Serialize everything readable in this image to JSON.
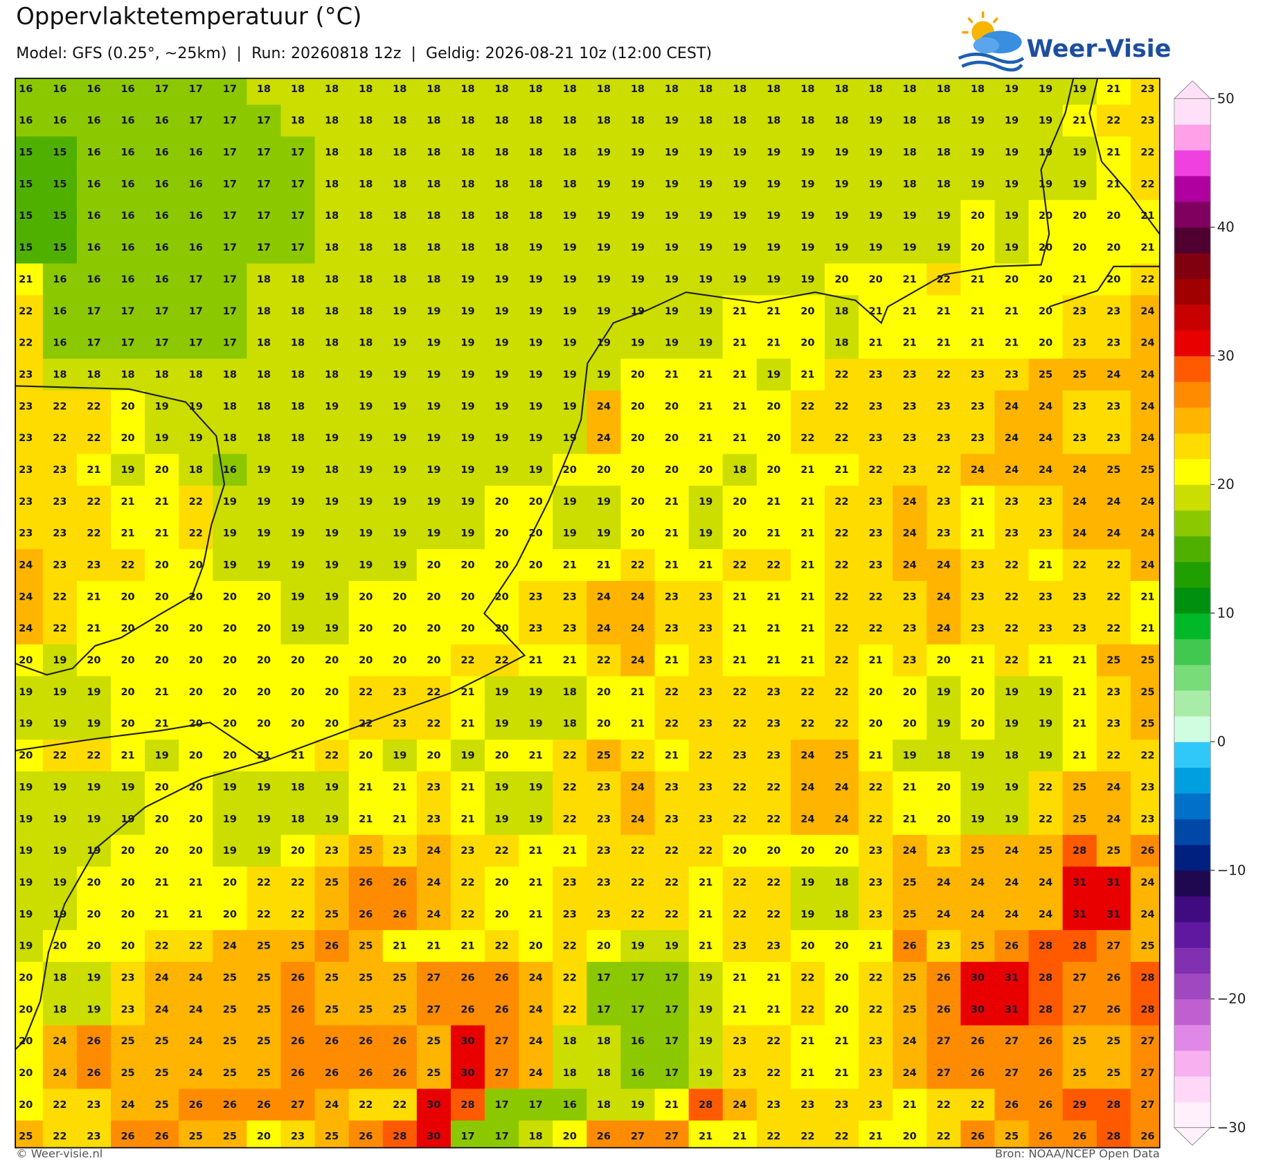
{
  "header": {
    "title": "Oppervlaktetemperatuur (°C)",
    "subtitle": "Model: GFS (0.25°, ~25km)  |  Run: 20260818 12z  |  Geldig: 2026-08-21 10z (12:00 CEST)",
    "logo": "Weer-Visie"
  },
  "map": {
    "values": [
      [
        16,
        16,
        16,
        16,
        17,
        17,
        17,
        18,
        18,
        18,
        18,
        18,
        18,
        18,
        18,
        18,
        18,
        18,
        18,
        18,
        18,
        18,
        18,
        18,
        18,
        18,
        18,
        18,
        18,
        19,
        19,
        19,
        21,
        23
      ],
      [
        16,
        16,
        16,
        16,
        16,
        17,
        17,
        17,
        18,
        18,
        18,
        18,
        18,
        18,
        18,
        18,
        18,
        18,
        18,
        19,
        18,
        18,
        18,
        18,
        18,
        19,
        18,
        18,
        19,
        19,
        19,
        21,
        22,
        23
      ],
      [
        15,
        15,
        16,
        16,
        16,
        16,
        17,
        17,
        17,
        18,
        18,
        18,
        18,
        18,
        18,
        18,
        18,
        19,
        19,
        19,
        19,
        19,
        19,
        19,
        19,
        19,
        18,
        18,
        19,
        19,
        19,
        19,
        21,
        22
      ],
      [
        15,
        15,
        16,
        16,
        16,
        16,
        17,
        17,
        17,
        18,
        18,
        18,
        18,
        18,
        18,
        18,
        18,
        19,
        19,
        19,
        19,
        19,
        19,
        19,
        19,
        19,
        18,
        18,
        19,
        19,
        19,
        19,
        21,
        22
      ],
      [
        15,
        15,
        16,
        16,
        16,
        16,
        17,
        17,
        17,
        18,
        18,
        18,
        18,
        18,
        18,
        18,
        19,
        19,
        19,
        19,
        19,
        19,
        19,
        19,
        19,
        19,
        19,
        19,
        20,
        19,
        20,
        20,
        20,
        21
      ],
      [
        15,
        15,
        16,
        16,
        16,
        16,
        17,
        17,
        17,
        18,
        18,
        18,
        18,
        18,
        18,
        19,
        19,
        19,
        19,
        19,
        19,
        19,
        19,
        19,
        19,
        19,
        19,
        19,
        20,
        19,
        20,
        20,
        20,
        21
      ],
      [
        21,
        16,
        16,
        16,
        16,
        17,
        17,
        18,
        18,
        18,
        18,
        18,
        18,
        19,
        19,
        19,
        19,
        19,
        19,
        19,
        19,
        19,
        19,
        19,
        20,
        20,
        21,
        22,
        21,
        20,
        20,
        21,
        20,
        22
      ],
      [
        22,
        16,
        17,
        17,
        17,
        17,
        17,
        18,
        18,
        18,
        18,
        19,
        19,
        19,
        19,
        19,
        19,
        19,
        19,
        19,
        19,
        21,
        21,
        20,
        18,
        21,
        21,
        21,
        21,
        21,
        20,
        23,
        23,
        24
      ],
      [
        22,
        16,
        17,
        17,
        17,
        17,
        17,
        18,
        18,
        18,
        18,
        19,
        19,
        19,
        19,
        19,
        19,
        19,
        19,
        19,
        19,
        21,
        21,
        20,
        18,
        21,
        21,
        21,
        21,
        21,
        20,
        23,
        23,
        24
      ],
      [
        23,
        18,
        18,
        18,
        18,
        18,
        18,
        18,
        18,
        18,
        19,
        19,
        19,
        19,
        19,
        19,
        19,
        19,
        20,
        21,
        21,
        21,
        19,
        21,
        22,
        23,
        23,
        22,
        23,
        23,
        25,
        25,
        24,
        24
      ],
      [
        23,
        22,
        22,
        20,
        19,
        19,
        18,
        18,
        18,
        19,
        19,
        19,
        19,
        19,
        19,
        19,
        19,
        24,
        20,
        20,
        21,
        21,
        20,
        22,
        22,
        23,
        23,
        23,
        23,
        24,
        24,
        23,
        23,
        24
      ],
      [
        23,
        22,
        22,
        20,
        19,
        19,
        18,
        18,
        18,
        19,
        19,
        19,
        19,
        19,
        19,
        19,
        19,
        24,
        20,
        20,
        21,
        21,
        20,
        22,
        22,
        23,
        23,
        23,
        23,
        24,
        24,
        23,
        23,
        24
      ],
      [
        23,
        23,
        21,
        19,
        20,
        18,
        16,
        19,
        19,
        18,
        19,
        19,
        19,
        19,
        19,
        19,
        20,
        20,
        20,
        20,
        20,
        18,
        20,
        21,
        21,
        22,
        23,
        22,
        24,
        24,
        24,
        24,
        25,
        25
      ],
      [
        23,
        23,
        22,
        21,
        21,
        22,
        19,
        19,
        19,
        19,
        19,
        19,
        19,
        19,
        20,
        20,
        19,
        19,
        20,
        21,
        19,
        20,
        21,
        21,
        22,
        23,
        24,
        23,
        21,
        23,
        23,
        24,
        24,
        24
      ],
      [
        23,
        23,
        22,
        21,
        21,
        22,
        19,
        19,
        19,
        19,
        19,
        19,
        19,
        19,
        20,
        20,
        19,
        19,
        20,
        21,
        19,
        20,
        21,
        21,
        22,
        23,
        24,
        23,
        21,
        23,
        23,
        24,
        24,
        24
      ],
      [
        24,
        23,
        23,
        22,
        20,
        20,
        19,
        19,
        19,
        19,
        19,
        19,
        20,
        20,
        20,
        20,
        21,
        21,
        22,
        21,
        21,
        22,
        22,
        21,
        22,
        23,
        24,
        24,
        23,
        22,
        21,
        22,
        22,
        24
      ],
      [
        24,
        22,
        21,
        20,
        20,
        20,
        20,
        20,
        19,
        19,
        20,
        20,
        20,
        20,
        20,
        23,
        23,
        24,
        24,
        23,
        23,
        21,
        21,
        21,
        22,
        22,
        23,
        24,
        23,
        22,
        23,
        23,
        22,
        21
      ],
      [
        24,
        22,
        21,
        20,
        20,
        20,
        20,
        20,
        19,
        19,
        20,
        20,
        20,
        20,
        20,
        23,
        23,
        24,
        24,
        23,
        23,
        21,
        21,
        21,
        22,
        22,
        23,
        24,
        23,
        22,
        23,
        23,
        22,
        21
      ],
      [
        20,
        19,
        20,
        20,
        20,
        20,
        20,
        20,
        20,
        20,
        20,
        20,
        20,
        22,
        22,
        21,
        21,
        22,
        24,
        21,
        23,
        21,
        21,
        21,
        22,
        21,
        23,
        20,
        21,
        22,
        21,
        21,
        25,
        25
      ],
      [
        19,
        19,
        19,
        20,
        21,
        20,
        20,
        20,
        20,
        20,
        22,
        23,
        22,
        21,
        19,
        19,
        18,
        20,
        21,
        22,
        23,
        22,
        23,
        22,
        22,
        20,
        20,
        19,
        20,
        19,
        19,
        21,
        23,
        25
      ],
      [
        19,
        19,
        19,
        20,
        21,
        20,
        20,
        20,
        20,
        20,
        22,
        23,
        22,
        21,
        19,
        19,
        18,
        20,
        21,
        22,
        23,
        22,
        23,
        22,
        22,
        20,
        20,
        19,
        20,
        19,
        19,
        21,
        23,
        25
      ],
      [
        20,
        22,
        22,
        21,
        19,
        20,
        20,
        21,
        21,
        22,
        20,
        19,
        20,
        19,
        20,
        21,
        22,
        25,
        22,
        21,
        22,
        23,
        23,
        24,
        25,
        21,
        19,
        18,
        19,
        18,
        19,
        21,
        22,
        22
      ],
      [
        19,
        19,
        19,
        19,
        20,
        20,
        19,
        19,
        18,
        19,
        21,
        21,
        23,
        21,
        19,
        19,
        22,
        23,
        24,
        23,
        23,
        22,
        22,
        24,
        24,
        22,
        21,
        20,
        19,
        19,
        22,
        25,
        24,
        23
      ],
      [
        19,
        19,
        19,
        19,
        20,
        20,
        19,
        19,
        18,
        19,
        21,
        21,
        23,
        21,
        19,
        19,
        22,
        23,
        24,
        23,
        23,
        22,
        22,
        24,
        24,
        22,
        21,
        20,
        19,
        19,
        22,
        25,
        24,
        23
      ],
      [
        19,
        19,
        19,
        20,
        20,
        20,
        19,
        19,
        20,
        23,
        25,
        23,
        24,
        23,
        22,
        21,
        21,
        23,
        22,
        22,
        22,
        20,
        20,
        20,
        20,
        23,
        24,
        23,
        25,
        24,
        25,
        28,
        25,
        26
      ],
      [
        19,
        19,
        20,
        20,
        21,
        21,
        20,
        22,
        22,
        25,
        26,
        26,
        24,
        22,
        20,
        21,
        23,
        23,
        22,
        22,
        21,
        22,
        22,
        19,
        18,
        23,
        25,
        24,
        24,
        24,
        24,
        31,
        31,
        24
      ],
      [
        19,
        19,
        20,
        20,
        21,
        21,
        20,
        22,
        22,
        25,
        26,
        26,
        24,
        22,
        20,
        21,
        23,
        23,
        22,
        22,
        21,
        22,
        22,
        19,
        18,
        23,
        25,
        24,
        24,
        24,
        24,
        31,
        31,
        24
      ],
      [
        19,
        20,
        20,
        20,
        22,
        22,
        24,
        25,
        25,
        26,
        25,
        21,
        21,
        21,
        22,
        20,
        22,
        20,
        19,
        19,
        21,
        23,
        23,
        20,
        20,
        21,
        26,
        23,
        25,
        26,
        28,
        28,
        27,
        25
      ],
      [
        20,
        18,
        19,
        23,
        24,
        24,
        25,
        25,
        26,
        25,
        25,
        25,
        27,
        26,
        26,
        24,
        22,
        17,
        17,
        17,
        19,
        21,
        21,
        22,
        20,
        22,
        25,
        26,
        30,
        31,
        28,
        27,
        26,
        28
      ],
      [
        20,
        18,
        19,
        23,
        24,
        24,
        25,
        25,
        26,
        25,
        25,
        25,
        27,
        26,
        26,
        24,
        22,
        17,
        17,
        17,
        19,
        21,
        21,
        22,
        20,
        22,
        25,
        26,
        30,
        31,
        28,
        27,
        26,
        28
      ],
      [
        20,
        24,
        26,
        25,
        25,
        24,
        25,
        25,
        26,
        26,
        26,
        26,
        25,
        30,
        27,
        24,
        18,
        18,
        16,
        17,
        19,
        23,
        22,
        21,
        21,
        23,
        24,
        27,
        26,
        27,
        26,
        25,
        25,
        27
      ],
      [
        20,
        24,
        26,
        25,
        25,
        24,
        25,
        25,
        26,
        26,
        26,
        26,
        25,
        30,
        27,
        24,
        18,
        18,
        16,
        17,
        19,
        23,
        22,
        21,
        21,
        23,
        24,
        27,
        26,
        27,
        26,
        25,
        25,
        27
      ],
      [
        20,
        22,
        23,
        24,
        25,
        26,
        26,
        26,
        27,
        24,
        22,
        22,
        30,
        28,
        17,
        17,
        16,
        18,
        19,
        21,
        28,
        24,
        23,
        23,
        23,
        23,
        21,
        22,
        22,
        26,
        26,
        29,
        28,
        27
      ],
      [
        25,
        22,
        23,
        26,
        26,
        25,
        25,
        20,
        23,
        25,
        26,
        28,
        30,
        17,
        17,
        18,
        20,
        26,
        27,
        27,
        21,
        21,
        22,
        22,
        22,
        21,
        20,
        22,
        26,
        25,
        26,
        26,
        28,
        26
      ]
    ]
  },
  "colorbar": {
    "lim": [
      -30,
      50
    ],
    "colors": [
      "#fff0fc",
      "#ffd8f8",
      "#f8b0f0",
      "#e088e8",
      "#c060d0",
      "#a048c0",
      "#8030b0",
      "#6018a0",
      "#400a80",
      "#200850",
      "#002080",
      "#0048a8",
      "#0070c8",
      "#00a0e0",
      "#30c8f8",
      "#d0fce0",
      "#a8eca8",
      "#78dc78",
      "#40c850",
      "#00b828",
      "#009010",
      "#20a000",
      "#50b000",
      "#8cc800",
      "#ccdd00",
      "#ffff00",
      "#ffdc00",
      "#ffb400",
      "#ff8c00",
      "#ff5a00",
      "#e80000",
      "#c80000",
      "#a00000",
      "#800010",
      "#500030",
      "#800060",
      "#b000a0",
      "#f040e0",
      "#ffa0e8",
      "#ffe0f8"
    ],
    "ticks": [
      50,
      40,
      30,
      20,
      10,
      0,
      {
        "value": -10,
        "label": "−10"
      },
      {
        "value": -20,
        "label": "−20"
      },
      {
        "value": -30,
        "label": "−30"
      }
    ]
  },
  "footer": {
    "left": "© Weer-visie.nl",
    "right": "Bron: NOAA/NCEP Open Data"
  }
}
